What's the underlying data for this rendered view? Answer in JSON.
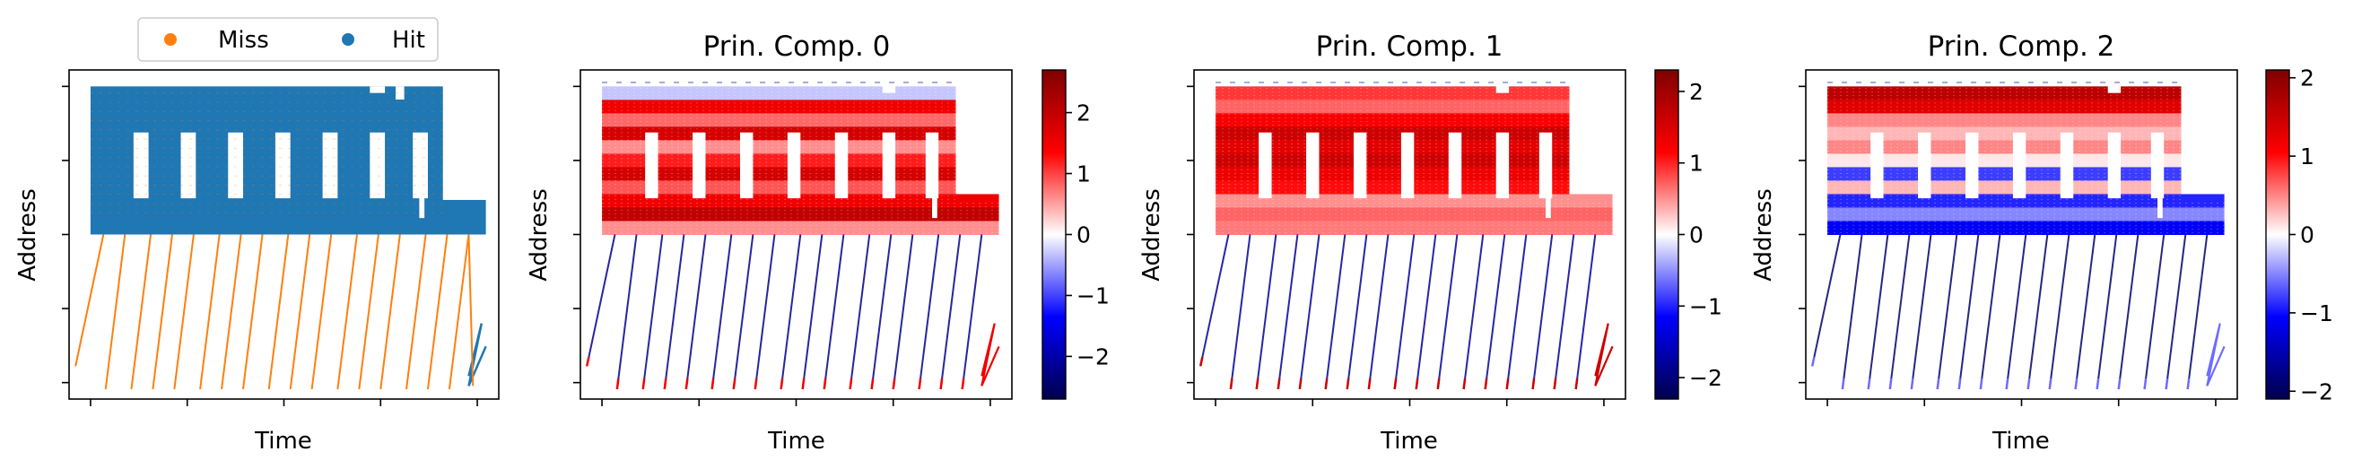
{
  "chart_data": [
    {
      "type": "scatter",
      "panel": "cache-access",
      "title": "",
      "xlabel": "Time",
      "ylabel": "Address",
      "xticks": 6,
      "yticks": 5,
      "legend": {
        "placement": "top-center, above axes",
        "entries": [
          {
            "name": "Miss",
            "color": "#ff7f0e"
          },
          {
            "name": "Hit",
            "color": "#1f77b4"
          }
        ]
      },
      "series": [
        {
          "name": "Miss",
          "color": "#ff7f0e",
          "description": "diagonal stride sweeps below main block, scattered over block"
        },
        {
          "name": "Hit",
          "color": "#1f77b4",
          "description": "dense main address block with gaps"
        }
      ],
      "x_range": [
        0,
        1
      ],
      "y_range": [
        0,
        1
      ],
      "block": {
        "x": [
          0.0,
          0.96
        ],
        "y": [
          0.46,
          0.93
        ]
      },
      "lower_block": {
        "x": [
          0.0,
          0.96
        ],
        "y": [
          0.46,
          0.58
        ]
      },
      "gaps": [
        0.15,
        0.26,
        0.37,
        0.48,
        0.59,
        0.7,
        0.8
      ],
      "stride_lines": [
        [
          0.0,
          0.09
        ],
        [
          0.05,
          0.03
        ],
        [
          0.1,
          0.03
        ],
        [
          0.16,
          0.03
        ],
        [
          0.22,
          0.03
        ],
        [
          0.27,
          0.03
        ],
        [
          0.33,
          0.03
        ],
        [
          0.38,
          0.03
        ],
        [
          0.43,
          0.03
        ],
        [
          0.49,
          0.03
        ],
        [
          0.54,
          0.03
        ],
        [
          0.6,
          0.03
        ],
        [
          0.66,
          0.03
        ],
        [
          0.71,
          0.03
        ],
        [
          0.76,
          0.03
        ],
        [
          0.82,
          0.03
        ],
        [
          0.87,
          0.03
        ]
      ]
    },
    {
      "type": "heatmap",
      "panel": "pc0",
      "title": "Prin. Comp. 0",
      "xlabel": "Time",
      "ylabel": "Address",
      "colormap": "seismic",
      "colorbar": {
        "range": [
          -2.7,
          2.7
        ],
        "ticks": [
          "2",
          "1",
          "0",
          "−1",
          "−2"
        ],
        "tick_values": [
          2,
          1,
          0,
          -1,
          -2
        ]
      },
      "band_values": [
        -0.3,
        1.5,
        0.8,
        1.8,
        0.6,
        1.2,
        1.8,
        0.9,
        1.5,
        2.0,
        0.6
      ],
      "stride_value": -2.2,
      "stride_tip_value": 1.5
    },
    {
      "type": "heatmap",
      "panel": "pc1",
      "title": "Prin. Comp. 1",
      "xlabel": "Time",
      "ylabel": "Address",
      "colormap": "seismic",
      "colorbar": {
        "range": [
          -2.3,
          2.3
        ],
        "ticks": [
          "2",
          "1",
          "0",
          "−1",
          "−2"
        ],
        "tick_values": [
          2,
          1,
          0,
          -1,
          -2
        ]
      },
      "band_values": [
        0.9,
        0.7,
        1.2,
        1.6,
        1.4,
        1.6,
        1.3,
        1.1,
        0.5,
        0.7,
        0.6
      ],
      "stride_value": -1.8,
      "stride_tip_value": 1.6
    },
    {
      "type": "heatmap",
      "panel": "pc2",
      "title": "Prin. Comp. 2",
      "xlabel": "Time",
      "ylabel": "Address",
      "colormap": "seismic",
      "colorbar": {
        "range": [
          -2.1,
          2.1
        ],
        "ticks": [
          "2",
          "1",
          "0",
          "−1",
          "−2"
        ],
        "tick_values": [
          2,
          1,
          0,
          -1,
          -2
        ]
      },
      "band_values": [
        1.6,
        1.3,
        0.5,
        0.3,
        0.5,
        0.1,
        -0.8,
        0.3,
        -0.9,
        -0.5,
        -1.1
      ],
      "stride_value": -1.9,
      "stride_tip_value": -0.6
    }
  ]
}
